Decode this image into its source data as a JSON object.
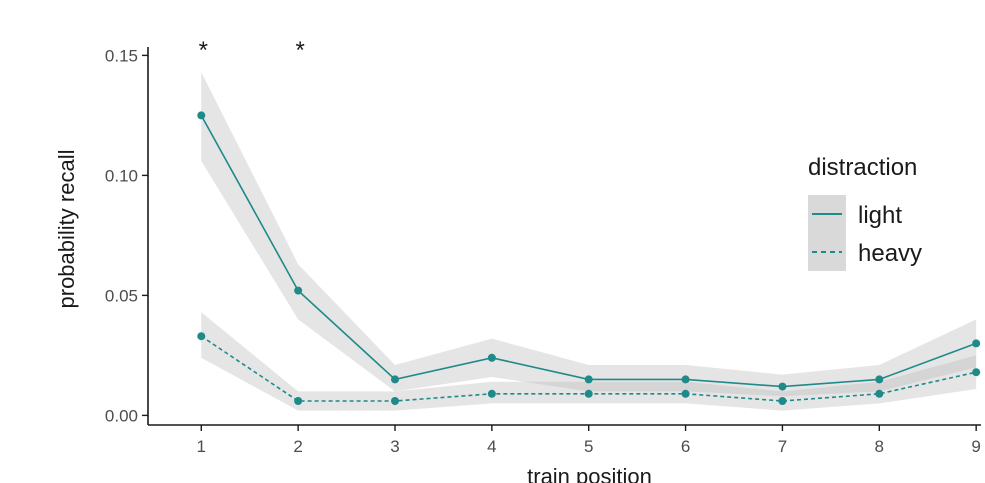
{
  "chart_data": {
    "type": "line",
    "title": "",
    "xlabel": "train position",
    "ylabel": "probability recall",
    "x": [
      1,
      2,
      3,
      4,
      5,
      6,
      7,
      8,
      9
    ],
    "x_tick_labels": [
      "1",
      "2",
      "3",
      "4",
      "5",
      "6",
      "7",
      "8",
      "9"
    ],
    "y_tick_labels": [
      "0.00",
      "0.05",
      "0.10",
      "0.15"
    ],
    "y_ticks": [
      0.0,
      0.05,
      0.1,
      0.15
    ],
    "xlim": [
      0.45,
      9.05
    ],
    "ylim": [
      -0.004,
      0.151
    ],
    "grid": false,
    "legend": {
      "title": "distraction",
      "position": "right",
      "entries": [
        "light",
        "heavy"
      ]
    },
    "series": [
      {
        "name": "light",
        "linestyle": "solid",
        "color": "#1f8a8a",
        "values": [
          0.125,
          0.052,
          0.015,
          0.024,
          0.015,
          0.015,
          0.012,
          0.015,
          0.03
        ],
        "lower": [
          0.106,
          0.04,
          0.01,
          0.016,
          0.01,
          0.01,
          0.008,
          0.01,
          0.02
        ],
        "upper": [
          0.143,
          0.063,
          0.021,
          0.032,
          0.021,
          0.021,
          0.017,
          0.021,
          0.04
        ]
      },
      {
        "name": "heavy",
        "linestyle": "dashed",
        "color": "#1f8a8a",
        "values": [
          0.033,
          0.006,
          0.006,
          0.009,
          0.009,
          0.009,
          0.006,
          0.009,
          0.018
        ],
        "lower": [
          0.024,
          0.002,
          0.002,
          0.005,
          0.005,
          0.005,
          0.002,
          0.005,
          0.011
        ],
        "upper": [
          0.043,
          0.01,
          0.01,
          0.014,
          0.014,
          0.014,
          0.01,
          0.014,
          0.025
        ]
      }
    ],
    "annotations": [
      {
        "text": "*",
        "x": 1
      },
      {
        "text": "*",
        "x": 2
      }
    ]
  }
}
